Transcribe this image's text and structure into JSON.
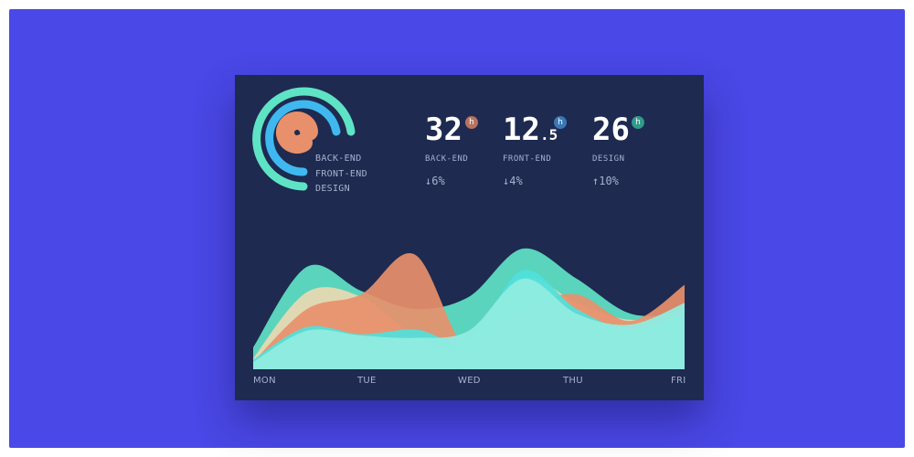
{
  "colors": {
    "background": "#4a48e6",
    "card": "#1e2a50",
    "backend": "#e8906b",
    "frontend": "#3fb8f0",
    "design": "#5fe3c5",
    "text_muted": "#a6b2cf"
  },
  "donut": {
    "legend": [
      "BACK-END",
      "FRONT-END",
      "DESIGN"
    ]
  },
  "stats": [
    {
      "value": "32",
      "decimal": "",
      "unit": "h",
      "label": "BACK-END",
      "change": "↓6%",
      "badge_color": "#b8725d"
    },
    {
      "value": "12",
      "decimal": ".5",
      "unit": "h",
      "label": "FRONT-END",
      "change": "↓4%",
      "badge_color": "#3a78b5"
    },
    {
      "value": "26",
      "decimal": "",
      "unit": "h",
      "label": "DESIGN",
      "change": "↑10%",
      "badge_color": "#2f9b8a"
    }
  ],
  "chart_data": {
    "type": "area",
    "categories": [
      "MON",
      "TUE",
      "WED",
      "THU",
      "FRI"
    ],
    "x": [
      0,
      0.5,
      1,
      1.5,
      2,
      2.5,
      3,
      3.5,
      4
    ],
    "ylim": [
      0,
      100
    ],
    "grid": false,
    "series": [
      {
        "color": "#5fe3c5",
        "values": [
          18,
          85,
          65,
          50,
          60,
          100,
          75,
          46,
          47
        ]
      },
      {
        "color": "#e9d9b1",
        "values": [
          9,
          64,
          60,
          28,
          18,
          75,
          55,
          41,
          50
        ]
      },
      {
        "color": "#e8906b",
        "values": [
          6,
          50,
          62,
          95,
          15,
          50,
          62,
          40,
          70
        ]
      },
      {
        "color": "#4fe1dc",
        "values": [
          8,
          35,
          29,
          33,
          25,
          82,
          50,
          33,
          47
        ]
      },
      {
        "color": "#8fece0",
        "values": [
          6,
          32,
          28,
          26,
          32,
          75,
          46,
          37,
          55
        ]
      }
    ]
  }
}
